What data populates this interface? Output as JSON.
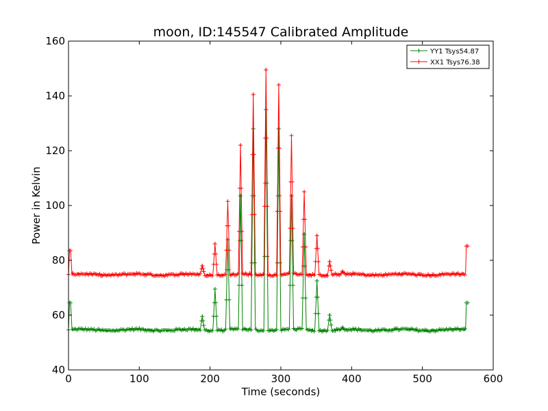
{
  "chart_data": {
    "type": "line",
    "title": "moon, ID:145547 Calibrated Amplitude",
    "xlabel": "Time (seconds)",
    "ylabel": "Power in Kelvin",
    "xlim": [
      0,
      600
    ],
    "ylim": [
      40,
      160
    ],
    "xticks": [
      0,
      100,
      200,
      300,
      400,
      500,
      600
    ],
    "yticks": [
      40,
      60,
      80,
      100,
      120,
      140,
      160
    ],
    "grid": false,
    "legend": "top-right",
    "series": [
      {
        "name": "YY1 Tsys54.87",
        "color": "#008000",
        "baseline": 54.6,
        "segments": [
          {
            "x": [
              0,
              1.5,
              3,
              5
            ],
            "y": [
              54.6,
              64.5,
              64.5,
              54.3
            ]
          }
        ],
        "x_end": 562,
        "peaks": [
          {
            "x": 189,
            "y": 59.5
          },
          {
            "x": 207,
            "y": 69.5
          },
          {
            "x": 225,
            "y": 87.5
          },
          {
            "x": 243,
            "y": 103.5
          },
          {
            "x": 261,
            "y": 128.0
          },
          {
            "x": 279,
            "y": 135.0
          },
          {
            "x": 297,
            "y": 128.0
          },
          {
            "x": 315,
            "y": 103.5
          },
          {
            "x": 333,
            "y": 89.5
          },
          {
            "x": 351,
            "y": 72.5
          },
          {
            "x": 369,
            "y": 60.0
          },
          {
            "x": 387,
            "y": 55.5
          }
        ],
        "end_step": {
          "x": [
            561,
            562,
            564
          ],
          "y": [
            54.5,
            64.5,
            64.5
          ]
        }
      },
      {
        "name": "XX1 Tsys76.38",
        "color": "#ff0000",
        "baseline": 74.8,
        "segments": [
          {
            "x": [
              0,
              1.5,
              3,
              5
            ],
            "y": [
              74.8,
              83.5,
              83.5,
              74.3
            ]
          }
        ],
        "x_end": 562,
        "peaks": [
          {
            "x": 189,
            "y": 78.0
          },
          {
            "x": 207,
            "y": 86.0
          },
          {
            "x": 225,
            "y": 101.5
          },
          {
            "x": 243,
            "y": 122.0
          },
          {
            "x": 261,
            "y": 140.5
          },
          {
            "x": 279,
            "y": 149.5
          },
          {
            "x": 297,
            "y": 144.0
          },
          {
            "x": 315,
            "y": 125.5
          },
          {
            "x": 333,
            "y": 105.0
          },
          {
            "x": 351,
            "y": 89.0
          },
          {
            "x": 369,
            "y": 79.5
          },
          {
            "x": 387,
            "y": 76.0
          }
        ],
        "end_step": {
          "x": [
            561,
            562,
            564
          ],
          "y": [
            75.8,
            85.2,
            85.2
          ]
        }
      }
    ]
  }
}
